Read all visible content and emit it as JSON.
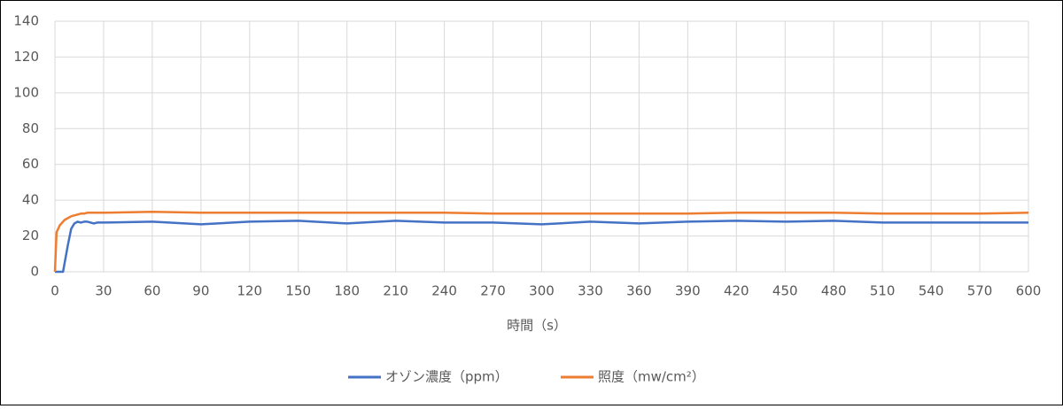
{
  "chart_data": {
    "type": "line",
    "x_label": "時間（s）",
    "x": [
      0,
      1,
      2,
      3,
      4,
      5,
      6,
      8,
      10,
      12,
      14,
      16,
      18,
      20,
      22,
      24,
      26,
      30,
      60,
      90,
      120,
      150,
      180,
      210,
      240,
      270,
      300,
      330,
      360,
      390,
      420,
      450,
      480,
      510,
      540,
      570,
      600
    ],
    "series": [
      {
        "name": "オゾン濃度（ppm）",
        "color": "#4472c4",
        "values": [
          0,
          0,
          0,
          0,
          0,
          0,
          5,
          15,
          24,
          27,
          28,
          27.5,
          28,
          28,
          27.5,
          27,
          27.5,
          27.5,
          28,
          26.5,
          28,
          28.5,
          27,
          28.5,
          27.5,
          27.5,
          26.5,
          28,
          27,
          28,
          28.5,
          28,
          28.5,
          27.5,
          27.5,
          27.5,
          27.5
        ]
      },
      {
        "name": "照度（mw/cm²）",
        "color": "#ed7d31",
        "values": [
          0,
          22,
          24,
          26,
          27,
          28,
          29,
          30,
          31,
          31.5,
          32,
          32.5,
          32.5,
          33,
          33,
          33,
          33,
          33,
          33.5,
          33,
          33,
          33,
          33,
          33,
          33,
          32.5,
          32.5,
          32.5,
          32.5,
          32.5,
          33,
          33,
          33,
          32.5,
          32.5,
          32.5,
          33
        ]
      }
    ],
    "xlim": [
      0,
      600
    ],
    "xticks": [
      0,
      30,
      60,
      90,
      120,
      150,
      180,
      210,
      240,
      270,
      300,
      330,
      360,
      390,
      420,
      450,
      480,
      510,
      540,
      570,
      600
    ],
    "ylim": [
      0,
      140
    ],
    "yticks": [
      0,
      20,
      40,
      60,
      80,
      100,
      120,
      140
    ],
    "grid": true,
    "legend": "bottom"
  }
}
